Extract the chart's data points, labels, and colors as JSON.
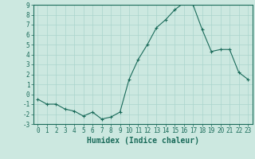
{
  "xlabel": "Humidex (Indice chaleur)",
  "ylabel": "",
  "x_values": [
    0,
    1,
    2,
    3,
    4,
    5,
    6,
    7,
    8,
    9,
    10,
    11,
    12,
    13,
    14,
    15,
    16,
    17,
    18,
    19,
    20,
    21,
    22,
    23
  ],
  "y_values": [
    -0.5,
    -1.0,
    -1.0,
    -1.5,
    -1.7,
    -2.2,
    -1.8,
    -2.5,
    -2.3,
    -1.8,
    1.5,
    3.5,
    5.0,
    6.7,
    7.5,
    8.5,
    9.2,
    9.0,
    6.5,
    4.3,
    4.5,
    4.5,
    2.2,
    1.5
  ],
  "ylim": [
    -3,
    9
  ],
  "xlim": [
    -0.5,
    23.5
  ],
  "yticks": [
    -3,
    -2,
    -1,
    0,
    1,
    2,
    3,
    4,
    5,
    6,
    7,
    8,
    9
  ],
  "xticks": [
    0,
    1,
    2,
    3,
    4,
    5,
    6,
    7,
    8,
    9,
    10,
    11,
    12,
    13,
    14,
    15,
    16,
    17,
    18,
    19,
    20,
    21,
    22,
    23
  ],
  "line_color": "#1a6b5a",
  "marker_color": "#1a6b5a",
  "bg_color": "#cce8e0",
  "grid_color": "#aad4cc",
  "border_color": "#1a6b5a",
  "text_color": "#1a6b5a",
  "tick_font_size": 5.5,
  "label_font_size": 7
}
